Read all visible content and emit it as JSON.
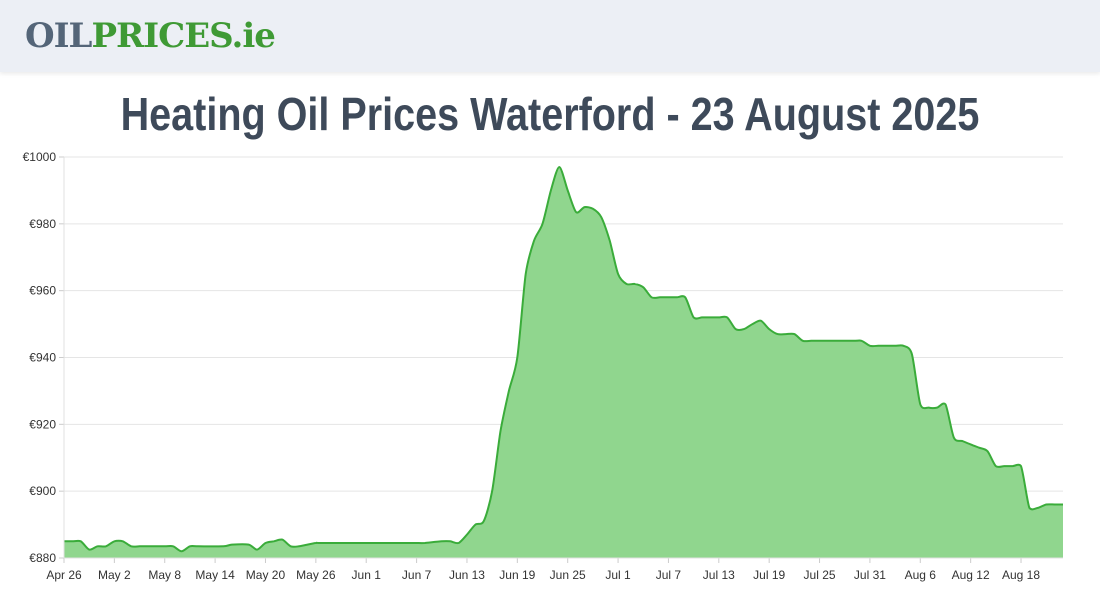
{
  "header": {
    "logo_oil": "OIL",
    "logo_prices": "PRICES",
    "logo_ie": ".ie"
  },
  "page": {
    "title": "Heating Oil Prices Waterford - 23 August 2025"
  },
  "colors": {
    "line": "#3aac3a",
    "fill": "#90d68e",
    "grid": "#e5e5e5"
  },
  "chart_data": {
    "type": "area",
    "title": "",
    "xlabel": "",
    "ylabel": "",
    "ylim": [
      880,
      1000
    ],
    "grid": true,
    "legend": "none",
    "y_ticks": [
      880,
      900,
      920,
      940,
      960,
      980,
      1000
    ],
    "y_tick_labels": [
      "€880",
      "€900",
      "€920",
      "€940",
      "€960",
      "€980",
      "€1000"
    ],
    "x_range": [
      "2025-04-26",
      "2025-08-23"
    ],
    "x_ticks": [
      "2025-04-26",
      "2025-05-02",
      "2025-05-08",
      "2025-05-14",
      "2025-05-20",
      "2025-05-26",
      "2025-06-01",
      "2025-06-07",
      "2025-06-13",
      "2025-06-19",
      "2025-06-25",
      "2025-07-01",
      "2025-07-07",
      "2025-07-13",
      "2025-07-19",
      "2025-07-25",
      "2025-07-31",
      "2025-08-06",
      "2025-08-12",
      "2025-08-18"
    ],
    "x_tick_labels": [
      "Apr 26",
      "May 2",
      "May 8",
      "May 14",
      "May 20",
      "May 26",
      "Jun 1",
      "Jun 7",
      "Jun 13",
      "Jun 19",
      "Jun 25",
      "Jul 1",
      "Jul 7",
      "Jul 13",
      "Jul 19",
      "Jul 25",
      "Jul 31",
      "Aug 6",
      "Aug 12",
      "Aug 18"
    ],
    "series": [
      {
        "name": "",
        "x": [
          "2025-04-26",
          "2025-04-27",
          "2025-04-28",
          "2025-04-29",
          "2025-04-30",
          "2025-05-01",
          "2025-05-02",
          "2025-05-03",
          "2025-05-04",
          "2025-05-05",
          "2025-05-06",
          "2025-05-08",
          "2025-05-09",
          "2025-05-10",
          "2025-05-11",
          "2025-05-12",
          "2025-05-15",
          "2025-05-16",
          "2025-05-18",
          "2025-05-19",
          "2025-05-20",
          "2025-05-21",
          "2025-05-22",
          "2025-05-23",
          "2025-05-24",
          "2025-05-26",
          "2025-05-27",
          "2025-06-06",
          "2025-06-07",
          "2025-06-08",
          "2025-06-10",
          "2025-06-11",
          "2025-06-12",
          "2025-06-13",
          "2025-06-14",
          "2025-06-15",
          "2025-06-16",
          "2025-06-17",
          "2025-06-18",
          "2025-06-19",
          "2025-06-20",
          "2025-06-21",
          "2025-06-22",
          "2025-06-23",
          "2025-06-24",
          "2025-06-25",
          "2025-06-26",
          "2025-06-27",
          "2025-06-28",
          "2025-06-29",
          "2025-06-30",
          "2025-07-01",
          "2025-07-02",
          "2025-07-03",
          "2025-07-04",
          "2025-07-05",
          "2025-07-06",
          "2025-07-07",
          "2025-07-08",
          "2025-07-09",
          "2025-07-10",
          "2025-07-11",
          "2025-07-12",
          "2025-07-13",
          "2025-07-14",
          "2025-07-15",
          "2025-07-16",
          "2025-07-17",
          "2025-07-18",
          "2025-07-19",
          "2025-07-20",
          "2025-07-21",
          "2025-07-22",
          "2025-07-23",
          "2025-07-24",
          "2025-07-25",
          "2025-07-29",
          "2025-07-30",
          "2025-07-31",
          "2025-08-01",
          "2025-08-02",
          "2025-08-03",
          "2025-08-04",
          "2025-08-05",
          "2025-08-06",
          "2025-08-07",
          "2025-08-08",
          "2025-08-09",
          "2025-08-10",
          "2025-08-11",
          "2025-08-12",
          "2025-08-13",
          "2025-08-14",
          "2025-08-15",
          "2025-08-16",
          "2025-08-17",
          "2025-08-18",
          "2025-08-19",
          "2025-08-20",
          "2025-08-21",
          "2025-08-22",
          "2025-08-23"
        ],
        "y": [
          885,
          885,
          885,
          882.5,
          883.5,
          883.5,
          885,
          885,
          883.5,
          883.5,
          883.5,
          883.5,
          883.5,
          882,
          883.5,
          883.5,
          883.5,
          884,
          884,
          882.5,
          884.5,
          885,
          885.5,
          883.5,
          883.5,
          884.5,
          884.5,
          884.5,
          884.5,
          884.5,
          885,
          885,
          884.5,
          887,
          890,
          891,
          900,
          918,
          930,
          940,
          965,
          975,
          980,
          990,
          997,
          990,
          983.5,
          985,
          984.5,
          982,
          975,
          965,
          962,
          962,
          961,
          958,
          958,
          958,
          958,
          958,
          952,
          952,
          952,
          952,
          952,
          948.5,
          948.5,
          950,
          951,
          948.5,
          947,
          947,
          947,
          945,
          945,
          945,
          945,
          945,
          943.5,
          943.5,
          943.5,
          943.5,
          943.5,
          941,
          926,
          925,
          925,
          926,
          916,
          915,
          914,
          913,
          912,
          907.5,
          907.5,
          907.5,
          907.5,
          895,
          895,
          896,
          896,
          896
        ]
      }
    ]
  }
}
